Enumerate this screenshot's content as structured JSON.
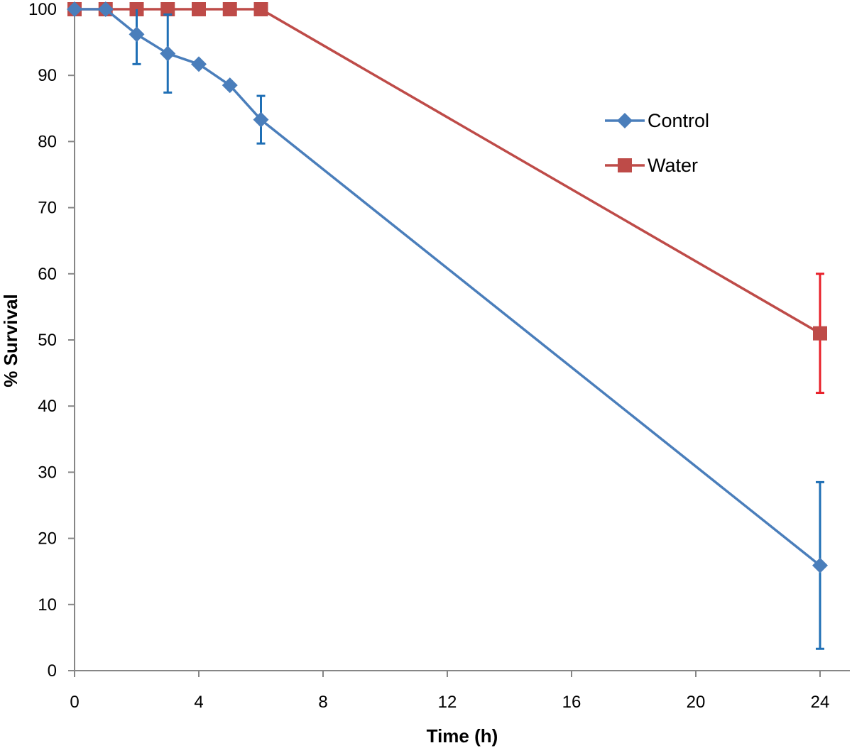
{
  "chart_data": {
    "type": "line",
    "title": "",
    "xlabel": "Time (h)",
    "ylabel": "% Survival",
    "xlim": [
      0,
      24
    ],
    "ylim": [
      0,
      100
    ],
    "xticks": [
      0,
      4,
      8,
      12,
      16,
      20,
      24
    ],
    "yticks": [
      0,
      10,
      20,
      30,
      40,
      50,
      60,
      70,
      80,
      90,
      100
    ],
    "grid": false,
    "legend_position": "right",
    "series": [
      {
        "name": "Control",
        "color": "#4a7ebb",
        "error_color": "#1f6fb5",
        "marker": "diamond",
        "x": [
          0,
          1,
          2,
          3,
          4,
          5,
          6,
          24
        ],
        "y": [
          100,
          100,
          96.2,
          93.3,
          91.7,
          88.5,
          83.3,
          15.9
        ],
        "error": [
          0,
          0,
          4.5,
          5.9,
          0,
          0,
          3.6,
          12.6
        ]
      },
      {
        "name": "Water",
        "color": "#be4b48",
        "error_color": "#e8202a",
        "marker": "square",
        "x": [
          0,
          1,
          2,
          3,
          4,
          5,
          6,
          24
        ],
        "y": [
          100,
          100,
          100,
          100,
          100,
          100,
          100,
          51
        ],
        "error": [
          0,
          0,
          0,
          0,
          0,
          0,
          0,
          9
        ]
      }
    ]
  }
}
